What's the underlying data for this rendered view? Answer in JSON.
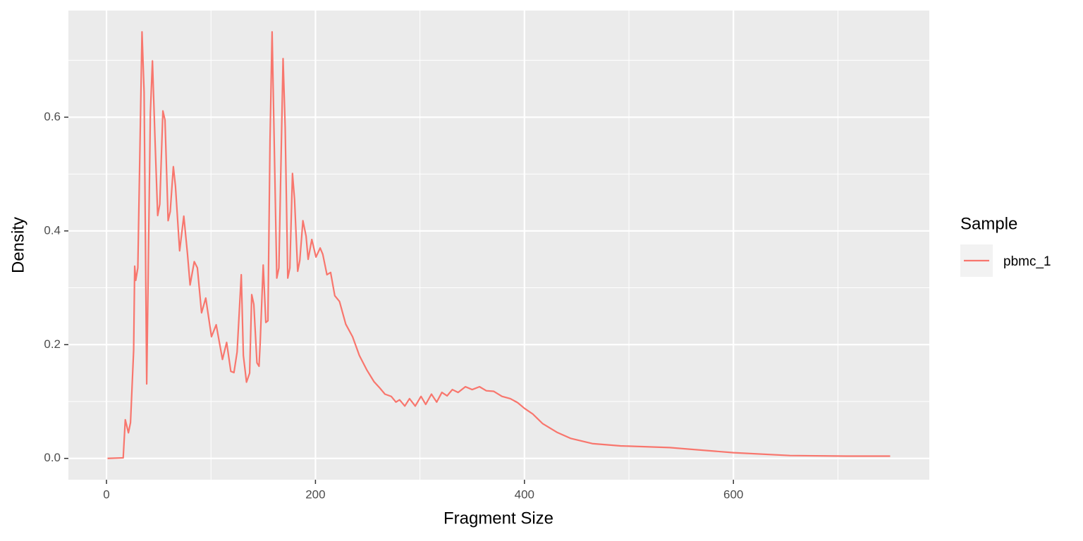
{
  "chart_data": {
    "type": "line",
    "xlabel": "Fragment Size",
    "ylabel": "Density",
    "x": [
      1,
      16,
      18,
      21,
      23,
      26,
      27,
      28,
      30,
      34,
      36,
      38.5,
      42,
      44,
      46.5,
      49,
      51,
      54,
      56,
      59,
      61,
      64,
      66,
      70,
      74,
      77.5,
      80,
      84,
      87,
      91,
      95,
      100.5,
      105,
      111,
      115,
      119,
      122,
      125,
      129,
      131,
      134,
      137,
      139,
      141,
      144,
      146,
      147,
      150,
      152.5,
      154.5,
      156.5,
      158.5,
      160.5,
      163,
      165,
      169,
      171,
      173.5,
      175.5,
      178,
      180,
      183,
      185,
      188,
      191,
      193,
      196.5,
      200.5,
      204.5,
      207,
      211,
      214.5,
      218.5,
      223,
      229,
      235.5,
      242,
      249,
      256,
      261,
      266.5,
      272.5,
      277,
      280.5,
      285.5,
      290,
      295.5,
      301,
      305.5,
      311,
      316,
      321,
      326,
      331,
      336.5,
      343.5,
      350,
      357,
      363.5,
      370.5,
      378.5,
      386.5,
      393.5,
      400,
      408,
      417.5,
      431,
      444.5,
      465,
      492,
      539,
      600,
      654,
      708,
      750
    ],
    "series": [
      {
        "name": "pbmc_1",
        "color": "#f8766d",
        "values": [
          0,
          0.001,
          0.068,
          0.045,
          0.063,
          0.19,
          0.338,
          0.313,
          0.335,
          0.75,
          0.644,
          0.131,
          0.607,
          0.699,
          0.558,
          0.427,
          0.447,
          0.611,
          0.595,
          0.418,
          0.434,
          0.513,
          0.479,
          0.365,
          0.426,
          0.36,
          0.305,
          0.346,
          0.335,
          0.256,
          0.282,
          0.214,
          0.235,
          0.174,
          0.204,
          0.153,
          0.151,
          0.187,
          0.323,
          0.181,
          0.134,
          0.15,
          0.288,
          0.271,
          0.168,
          0.162,
          0.199,
          0.34,
          0.239,
          0.242,
          0.558,
          0.75,
          0.558,
          0.317,
          0.335,
          0.703,
          0.583,
          0.317,
          0.335,
          0.501,
          0.455,
          0.329,
          0.348,
          0.418,
          0.391,
          0.35,
          0.385,
          0.354,
          0.37,
          0.359,
          0.323,
          0.327,
          0.286,
          0.276,
          0.236,
          0.214,
          0.181,
          0.156,
          0.135,
          0.125,
          0.113,
          0.109,
          0.099,
          0.103,
          0.092,
          0.105,
          0.092,
          0.109,
          0.095,
          0.113,
          0.099,
          0.116,
          0.11,
          0.121,
          0.116,
          0.126,
          0.121,
          0.126,
          0.119,
          0.118,
          0.109,
          0.105,
          0.098,
          0.088,
          0.078,
          0.061,
          0.046,
          0.035,
          0.026,
          0.022,
          0.019,
          0.01,
          0.005,
          0.004,
          0.004
        ]
      }
    ],
    "xlim": [
      -36.45,
      787.45
    ],
    "xticks": [
      0,
      200,
      400,
      600
    ],
    "xminor": [
      100,
      300,
      500,
      700
    ],
    "ylim": [
      -0.0375,
      0.7875
    ],
    "yticks": [
      {
        "value": 0,
        "label": "0.0"
      },
      {
        "value": 0.2,
        "label": "0.2"
      },
      {
        "value": 0.4,
        "label": "0.4"
      },
      {
        "value": 0.6,
        "label": "0.6"
      }
    ],
    "yminor": [
      0.1,
      0.3,
      0.5,
      0.7
    ],
    "grid": true,
    "legend_title": "Sample",
    "legend_position": "right"
  }
}
